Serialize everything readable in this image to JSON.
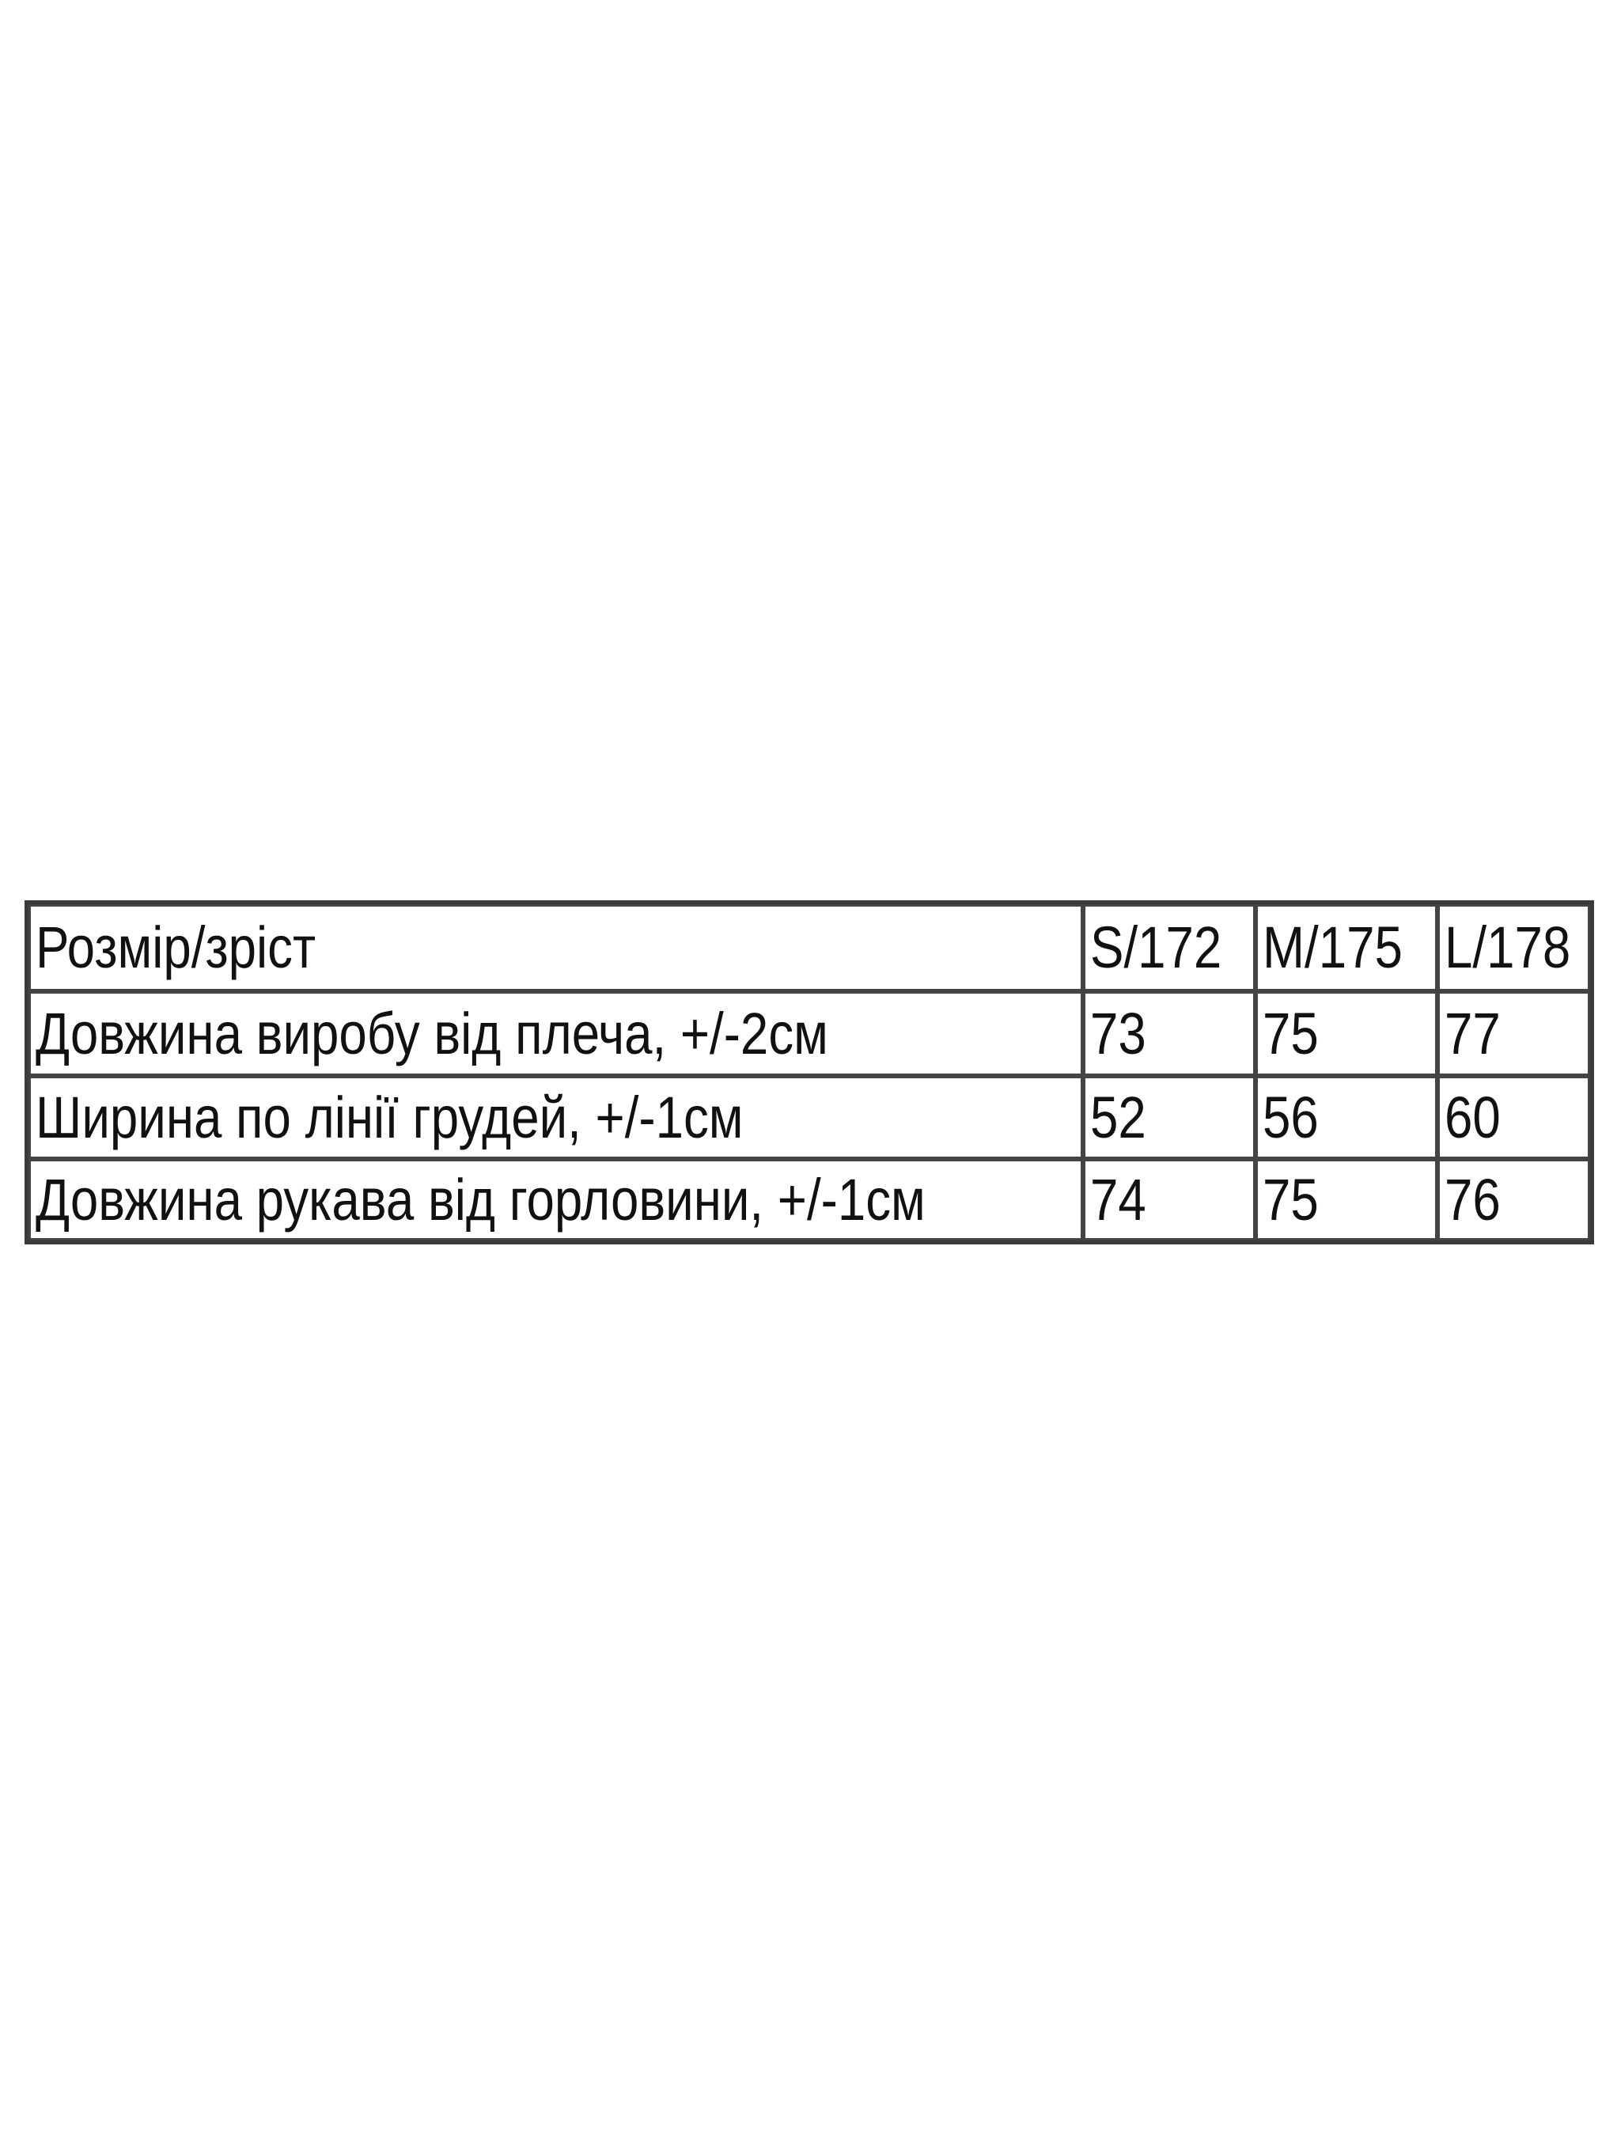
{
  "table": {
    "header": [
      "Розмір/зріст",
      "S/172",
      "M/175",
      "L/178"
    ],
    "rows": [
      [
        "Довжина виробу від плеча, +/-2см",
        "73",
        "75",
        "77"
      ],
      [
        "Ширина по лінії грудей, +/-1см",
        "52",
        "56",
        "60"
      ],
      [
        "Довжина рукава від горловини, +/-1см",
        "74",
        "75",
        "76"
      ]
    ]
  }
}
